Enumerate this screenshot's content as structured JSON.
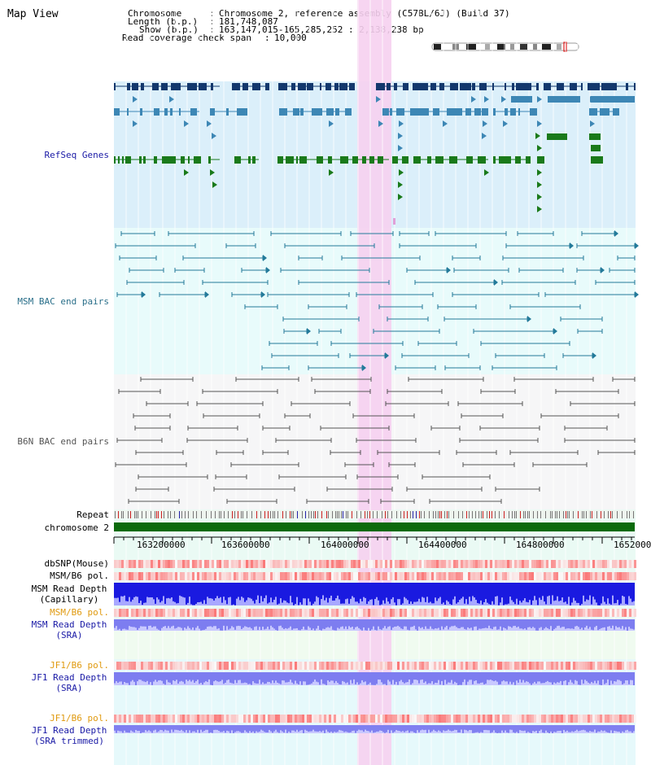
{
  "page_title": "Map View",
  "header": {
    "chromosome_key": "Chromosome",
    "chromosome_val": "Chromosome 2, reference assembly (C57BL/6J) (Build 37)",
    "length_key": "Length (b.p.)",
    "length_val": "181,748,087",
    "show_key": "Show (b.p.)",
    "show_val": "163,147,015-165,285,252 : 2,138,238 bp",
    "coverage_key": "Read coverage check span",
    "coverage_val": "10,000"
  },
  "tracks": {
    "refseq": "RefSeq Genes",
    "msm_bac": "MSM BAC end pairs",
    "b6n_bac": "B6N BAC end pairs",
    "repeat": "Repeat",
    "chromosome": "chromosome 2"
  },
  "axis_ticks": [
    "163200000",
    "163600000",
    "164000000",
    "164400000",
    "164800000",
    "1652000"
  ],
  "lower_tracks": {
    "dbsnp": "dbSNP(Mouse)",
    "msm_pol1": "MSM/B6 pol.",
    "msm_depth_cap_1": "MSM Read Depth",
    "msm_depth_cap_2": "(Capillary)",
    "msm_pol2": "MSM/B6 pol.",
    "msm_depth_sra_1": "MSM Read Depth",
    "msm_depth_sra_2": "(SRA)",
    "jf1_pol1": "JF1/B6 pol.",
    "jf1_depth_sra_1": "JF1 Read Depth",
    "jf1_depth_sra_2": "(SRA)",
    "jf1_pol2": "JF1/B6 pol.",
    "jf1_depth_trim_1": "JF1 Read Depth",
    "jf1_depth_trim_2": "(SRA trimmed)"
  },
  "colors": {
    "refseq_bg": "#dbeffa",
    "msm_bg": "#e8fbfb",
    "b6n_bg": "#f6f6f7",
    "highlight": "#f6d0f0",
    "gene_dark": "#13386d",
    "gene_mid": "#3d87b5",
    "gene_green": "#1a7a1a",
    "msm_line": "#237a9a",
    "b6n_line": "#555555",
    "label_blue": "#1a1aa6",
    "label_teal": "#2a6f8a",
    "label_orange": "#e09a10"
  }
}
